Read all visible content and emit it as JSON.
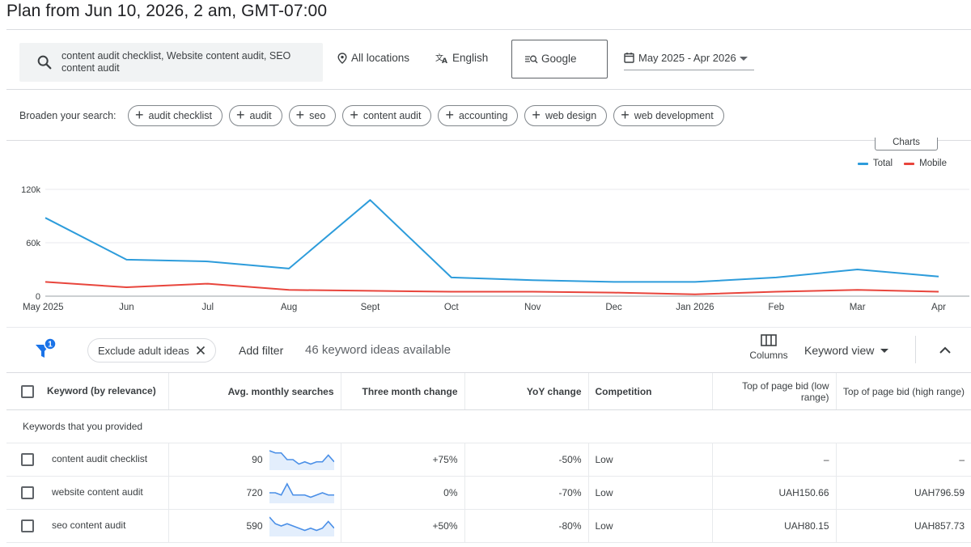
{
  "plan_title": "Plan from Jun 10, 2026, 2 am, GMT-07:00",
  "search": {
    "query": "content audit checklist, Website content audit, SEO content audit",
    "location": "All locations",
    "language": "English",
    "engine": "Google",
    "date_range": "May 2025 - Apr 2026"
  },
  "broaden": {
    "label": "Broaden your search:",
    "chips": [
      "audit checklist",
      "audit",
      "seo",
      "content audit",
      "accounting",
      "web design",
      "web development"
    ]
  },
  "chart": {
    "charts_button": "Charts",
    "legend": [
      {
        "name": "Total",
        "color": "#2d9cdb"
      },
      {
        "name": "Mobile",
        "color": "#e8453c"
      }
    ]
  },
  "chart_data": {
    "type": "line",
    "x": [
      "May 2025",
      "Jun",
      "Jul",
      "Aug",
      "Sept",
      "Oct",
      "Nov",
      "Dec",
      "Jan 2026",
      "Feb",
      "Mar",
      "Apr"
    ],
    "series": [
      {
        "name": "Total",
        "values": [
          88000,
          41000,
          39000,
          31000,
          108000,
          21000,
          18000,
          16000,
          16000,
          21000,
          30000,
          22000
        ]
      },
      {
        "name": "Mobile",
        "values": [
          16000,
          10000,
          14000,
          7000,
          6000,
          5000,
          5000,
          4000,
          2000,
          5000,
          7000,
          5000
        ]
      }
    ],
    "yticks": [
      "0",
      "60k",
      "120k"
    ],
    "ylim": [
      0,
      120000
    ],
    "grid": true,
    "legend": "top-right"
  },
  "filterbar": {
    "filter_count": "1",
    "exclude_chip": "Exclude adult ideas",
    "add_filter": "Add filter",
    "ideas_count": "46 keyword ideas available",
    "columns": "Columns",
    "keyword_view": "Keyword view"
  },
  "table": {
    "headers": {
      "keyword": "Keyword (by relevance)",
      "avg": "Avg. monthly searches",
      "three_month": "Three month change",
      "yoy": "YoY change",
      "competition": "Competition",
      "bid_low": "Top of page bid (low range)",
      "bid_high": "Top of page bid (high range)"
    },
    "group_label": "Keywords that you provided",
    "rows": [
      {
        "keyword": "content audit checklist",
        "avg": "90",
        "three_month": "+75%",
        "yoy": "-50%",
        "competition": "Low",
        "bid_low": "–",
        "bid_high": "–",
        "trend": [
          8,
          7,
          7,
          4,
          4,
          2,
          3,
          2,
          3,
          3,
          6,
          3
        ]
      },
      {
        "keyword": "website content audit",
        "avg": "720",
        "three_month": "0%",
        "yoy": "-70%",
        "competition": "Low",
        "bid_low": "UAH150.66",
        "bid_high": "UAH796.59",
        "trend": [
          4,
          4,
          3,
          8,
          3,
          3,
          3,
          2,
          3,
          4,
          3,
          3
        ]
      },
      {
        "keyword": "seo content audit",
        "avg": "590",
        "three_month": "+50%",
        "yoy": "-80%",
        "competition": "Low",
        "bid_low": "UAH80.15",
        "bid_high": "UAH857.73",
        "trend": [
          8,
          5,
          4,
          5,
          4,
          3,
          2,
          3,
          2,
          3,
          6,
          3
        ]
      }
    ]
  }
}
